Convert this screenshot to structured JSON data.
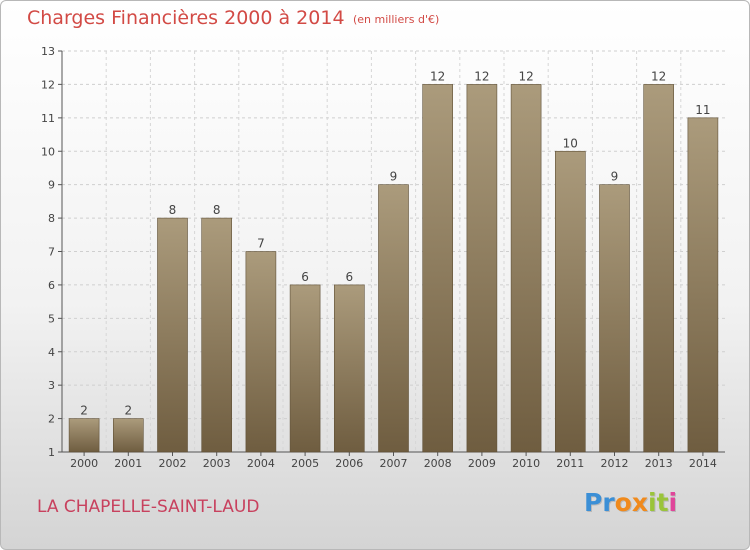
{
  "chart_data": {
    "type": "bar",
    "title": "Charges Financières 2000 à 2014",
    "subtitle": "(en milliers d'€)",
    "categories": [
      "2000",
      "2001",
      "2002",
      "2003",
      "2004",
      "2005",
      "2006",
      "2007",
      "2008",
      "2009",
      "2010",
      "2011",
      "2012",
      "2013",
      "2014"
    ],
    "values": [
      2,
      2,
      8,
      8,
      7,
      6,
      6,
      9,
      12,
      12,
      12,
      10,
      9,
      12,
      11
    ],
    "ylim": [
      1,
      13
    ],
    "yticks": [
      "1",
      "2",
      "3",
      "4",
      "5",
      "6",
      "7",
      "8",
      "9",
      "10",
      "11",
      "12",
      "13"
    ],
    "grid": true,
    "bar_color": "#8c7a5b",
    "title_color": "#d24a45"
  },
  "footer": {
    "commune": "LA CHAPELLE-SAINT-LAUD",
    "logo_letters": [
      "P",
      "r",
      "o",
      "x",
      "i",
      "t",
      "i"
    ],
    "logo_colors": [
      "#3b8fd6",
      "#3b8fd6",
      "#f08a1c",
      "#f08a1c",
      "#9ac43a",
      "#9ac43a",
      "#e0469a"
    ]
  }
}
